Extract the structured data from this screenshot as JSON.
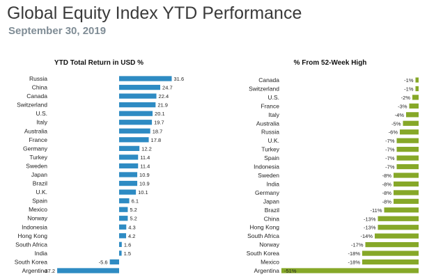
{
  "title": "Global Equity Index YTD Performance",
  "subtitle": "September 30, 2019",
  "colors": {
    "left_bar": "#2e8bc3",
    "right_bar": "#86a828"
  },
  "chart_data": [
    {
      "type": "bar",
      "orientation": "horizontal",
      "title": "YTD Total Return in USD %",
      "categories": [
        "Russia",
        "China",
        "Canada",
        "Switzerland",
        "U.S.",
        "Italy",
        "Australia",
        "France",
        "Germany",
        "Turkey",
        "Sweden",
        "Japan",
        "Brazil",
        "U.K.",
        "Spain",
        "Mexico",
        "Norway",
        "Indonesia",
        "Hong Kong",
        "South Africa",
        "India",
        "South Korea",
        "Argentina"
      ],
      "values": [
        31.6,
        24.7,
        22.4,
        21.9,
        20.1,
        19.7,
        18.7,
        17.8,
        12.2,
        11.4,
        11.4,
        10.9,
        10.9,
        10.1,
        6.1,
        5.2,
        5.2,
        4.3,
        4.2,
        1.6,
        1.5,
        -5.6,
        -37.2
      ],
      "value_labels": [
        "31.6",
        "24.7",
        "22.4",
        "21.9",
        "20.1",
        "19.7",
        "18.7",
        "17.8",
        "12.2",
        "11.4",
        "11.4",
        "10.9",
        "10.9",
        "10.1",
        "6.1",
        "5.2",
        "5.2",
        "4.3",
        "4.2",
        "1.6",
        "1.5",
        "-5.6",
        "-37.2"
      ]
    },
    {
      "type": "bar",
      "orientation": "horizontal",
      "title": "% From 52-Week High",
      "categories": [
        "Canada",
        "Switzerland",
        "U.S.",
        "France",
        "Italy",
        "Australia",
        "Russia",
        "U.K.",
        "Turkey",
        "Spain",
        "Indonesia",
        "Sweden",
        "India",
        "Germany",
        "Japan",
        "Brazil",
        "China",
        "Hong Kong",
        "South Africa",
        "Norway",
        "South Korea",
        "Mexico",
        "Argentina"
      ],
      "values": [
        -1,
        -1,
        -2,
        -3,
        -4,
        -5,
        -6,
        -7,
        -7,
        -7,
        -7,
        -8,
        -8,
        -8,
        -8,
        -11,
        -13,
        -13,
        -14,
        -17,
        -18,
        -18,
        -51
      ],
      "value_labels": [
        "-1%",
        "-1%",
        "-2%",
        "-3%",
        "-4%",
        "-5%",
        "-6%",
        "-7%",
        "-7%",
        "-7%",
        "-7%",
        "-8%",
        "-8%",
        "-8%",
        "-8%",
        "-11%",
        "-13%",
        "-13%",
        "-14%",
        "-17%",
        "-18%",
        "-18%",
        "-51%"
      ]
    }
  ]
}
